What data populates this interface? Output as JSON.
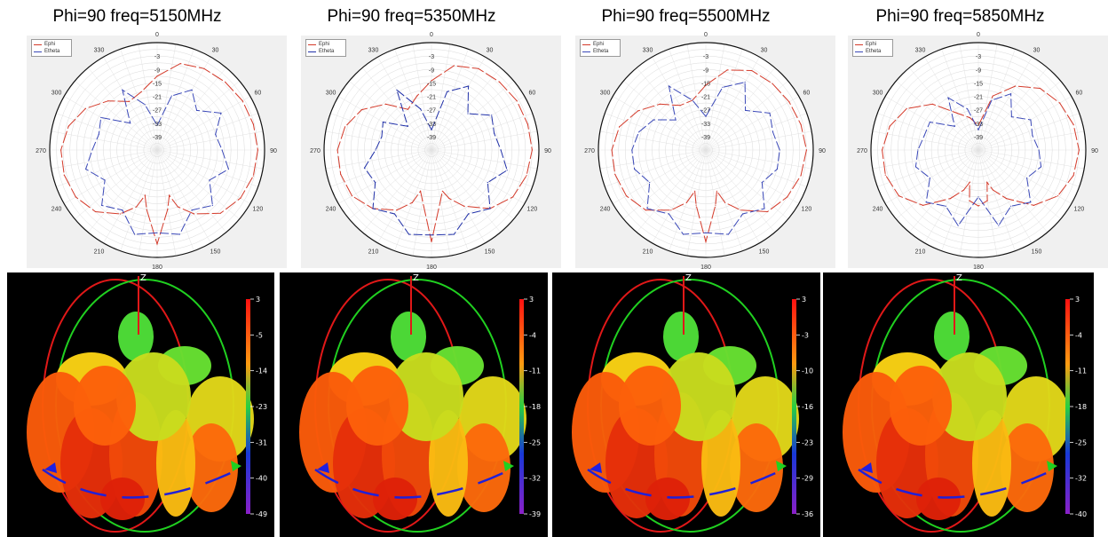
{
  "chart_data": [
    {
      "type": "polar",
      "title": "Phi=90 freq=5150MHz",
      "angle_ticks": [
        0,
        30,
        60,
        90,
        120,
        150,
        180,
        210,
        240,
        270,
        300,
        330
      ],
      "radial_ticks": [
        -3,
        -9,
        -15,
        -21,
        -27,
        -33,
        -39
      ],
      "rlim": [
        -45,
        3
      ],
      "grid": true,
      "legend_position": "top-left",
      "series": [
        {
          "name": "Ephi",
          "color": "#d43a2a",
          "theta_deg": [
            0,
            15,
            30,
            45,
            60,
            75,
            90,
            105,
            120,
            135,
            150,
            160,
            165,
            170,
            180,
            190,
            195,
            200,
            210,
            225,
            240,
            255,
            270,
            285,
            300,
            315,
            330,
            345
          ],
          "r_db": [
            -12,
            -5,
            -3,
            -2,
            -1,
            -0.5,
            0,
            -0.5,
            -2,
            -5,
            -12,
            -18,
            -24,
            -18,
            -3,
            -18,
            -24,
            -18,
            -12,
            -6,
            -3,
            -2,
            -2,
            -4,
            -8,
            -14,
            -20,
            -18
          ]
        },
        {
          "name": "Etheta",
          "color": "#3a48b8",
          "theta_deg": [
            0,
            15,
            30,
            45,
            60,
            75,
            90,
            105,
            120,
            135,
            150,
            165,
            180,
            195,
            210,
            225,
            240,
            255,
            270,
            285,
            300,
            315,
            330,
            345
          ],
          "r_db": [
            -34,
            -20,
            -14,
            -20,
            -12,
            -18,
            -16,
            -12,
            -18,
            -10,
            -14,
            -6,
            -8,
            -6,
            -14,
            -10,
            -18,
            -12,
            -16,
            -18,
            -16,
            -28,
            -14,
            -24
          ]
        }
      ]
    },
    {
      "type": "polar",
      "title": "Phi=90 freq=5350MHz",
      "angle_ticks": [
        0,
        30,
        60,
        90,
        120,
        150,
        180,
        210,
        240,
        270,
        300,
        330
      ],
      "radial_ticks": [
        -3,
        -9,
        -15,
        -21,
        -27,
        -33,
        -39
      ],
      "rlim": [
        -45,
        3
      ],
      "grid": true,
      "legend_position": "top-left",
      "series": [
        {
          "name": "Ephi",
          "color": "#d43a2a",
          "theta_deg": [
            0,
            15,
            30,
            45,
            60,
            75,
            90,
            105,
            120,
            135,
            150,
            160,
            165,
            170,
            180,
            190,
            195,
            200,
            210,
            225,
            240,
            255,
            270,
            285,
            300,
            315,
            330,
            345
          ],
          "r_db": [
            -14,
            -6,
            -3,
            -2,
            -1,
            -0.5,
            0,
            -1,
            -3,
            -8,
            -16,
            -22,
            -26,
            -22,
            -4,
            -22,
            -26,
            -20,
            -14,
            -8,
            -4,
            -3,
            -3,
            -5,
            -9,
            -16,
            -24,
            -20
          ]
        },
        {
          "name": "Etheta",
          "color": "#2030a8",
          "theta_deg": [
            0,
            15,
            30,
            45,
            60,
            75,
            90,
            105,
            120,
            135,
            150,
            165,
            180,
            195,
            210,
            225,
            240,
            255,
            270,
            285,
            300,
            315,
            330,
            345
          ],
          "r_db": [
            -36,
            -18,
            -12,
            -22,
            -14,
            -16,
            -14,
            -10,
            -16,
            -8,
            -12,
            -6,
            -7,
            -6,
            -12,
            -8,
            -16,
            -14,
            -20,
            -22,
            -20,
            -30,
            -14,
            -26
          ]
        }
      ]
    },
    {
      "type": "polar",
      "title": "Phi=90 freq=5500MHz",
      "angle_ticks": [
        0,
        30,
        60,
        90,
        120,
        150,
        180,
        210,
        240,
        270,
        300,
        330
      ],
      "radial_ticks": [
        -3,
        -9,
        -15,
        -21,
        -27,
        -33,
        -39
      ],
      "rlim": [
        -45,
        3
      ],
      "grid": true,
      "legend_position": "top-left",
      "series": [
        {
          "name": "Ephi",
          "color": "#d43a2a",
          "theta_deg": [
            0,
            15,
            30,
            45,
            60,
            75,
            90,
            105,
            120,
            135,
            150,
            160,
            165,
            170,
            180,
            190,
            195,
            200,
            210,
            225,
            240,
            255,
            270,
            285,
            300,
            315,
            330,
            345
          ],
          "r_db": [
            -16,
            -8,
            -4,
            -3,
            -2,
            -1,
            0,
            -1,
            -3,
            -6,
            -14,
            -20,
            -26,
            -20,
            -4,
            -20,
            -26,
            -20,
            -14,
            -7,
            -4,
            -3,
            -3,
            -5,
            -10,
            -16,
            -22,
            -22
          ]
        },
        {
          "name": "Etheta",
          "color": "#3a48b8",
          "theta_deg": [
            0,
            15,
            30,
            45,
            60,
            75,
            90,
            105,
            120,
            135,
            150,
            165,
            180,
            195,
            210,
            225,
            240,
            255,
            270,
            285,
            300,
            315,
            330,
            345
          ],
          "r_db": [
            -30,
            -16,
            -10,
            -20,
            -12,
            -14,
            -12,
            -12,
            -16,
            -8,
            -12,
            -6,
            -8,
            -6,
            -12,
            -8,
            -16,
            -12,
            -12,
            -14,
            -18,
            -26,
            -12,
            -22
          ]
        }
      ]
    },
    {
      "type": "polar",
      "title": "Phi=90 freq=5850MHz",
      "angle_ticks": [
        0,
        30,
        60,
        90,
        120,
        150,
        180,
        210,
        240,
        270,
        300,
        330
      ],
      "radial_ticks": [
        -3,
        -9,
        -15,
        -21,
        -27,
        -33,
        -39
      ],
      "rlim": [
        -45,
        3
      ],
      "grid": true,
      "legend_position": "top-left",
      "series": [
        {
          "name": "Ephi",
          "color": "#d43a2a",
          "theta_deg": [
            0,
            15,
            30,
            45,
            60,
            75,
            90,
            105,
            120,
            135,
            150,
            160,
            165,
            170,
            180,
            190,
            195,
            200,
            210,
            225,
            240,
            255,
            270,
            285,
            300,
            315,
            330,
            345
          ],
          "r_db": [
            -34,
            -20,
            -12,
            -6,
            -3,
            -1,
            0,
            -1,
            -4,
            -10,
            -20,
            -26,
            -30,
            -22,
            -20,
            -22,
            -30,
            -26,
            -20,
            -10,
            -4,
            -2,
            -2,
            -4,
            -8,
            -16,
            -26,
            -30
          ]
        },
        {
          "name": "Etheta",
          "color": "#3a48b8",
          "theta_deg": [
            0,
            15,
            30,
            45,
            60,
            75,
            90,
            105,
            120,
            135,
            150,
            165,
            180,
            195,
            210,
            225,
            240,
            255,
            270,
            285,
            300,
            315,
            330,
            345
          ],
          "r_db": [
            -36,
            -22,
            -16,
            -24,
            -18,
            -20,
            -18,
            -16,
            -20,
            -12,
            -16,
            -10,
            -24,
            -10,
            -16,
            -12,
            -20,
            -16,
            -18,
            -20,
            -20,
            -30,
            -18,
            -26
          ]
        }
      ]
    },
    {
      "type": "heatmap",
      "subtype": "3d-radiation-pattern",
      "axis_label": "Z",
      "colorbar_ticks": [
        "3",
        "-5",
        "-14",
        "-23",
        "-31",
        "-40",
        "-49"
      ],
      "colorbar_range": [
        -49,
        3
      ]
    },
    {
      "type": "heatmap",
      "subtype": "3d-radiation-pattern",
      "axis_label": "Z",
      "colorbar_ticks": [
        "3",
        "-4",
        "-11",
        "-18",
        "-25",
        "-32",
        "-39"
      ],
      "colorbar_range": [
        -39,
        3
      ]
    },
    {
      "type": "heatmap",
      "subtype": "3d-radiation-pattern",
      "axis_label": "Z",
      "colorbar_ticks": [
        "3",
        "-3",
        "-10",
        "-16",
        "-23",
        "-29",
        "-36"
      ],
      "colorbar_range": [
        -36,
        3
      ]
    },
    {
      "type": "heatmap",
      "subtype": "3d-radiation-pattern",
      "axis_label": "Z",
      "colorbar_ticks": [
        "3",
        "-4",
        "-11",
        "-18",
        "-25",
        "-32",
        "-40"
      ],
      "colorbar_range": [
        -40,
        3
      ]
    }
  ]
}
